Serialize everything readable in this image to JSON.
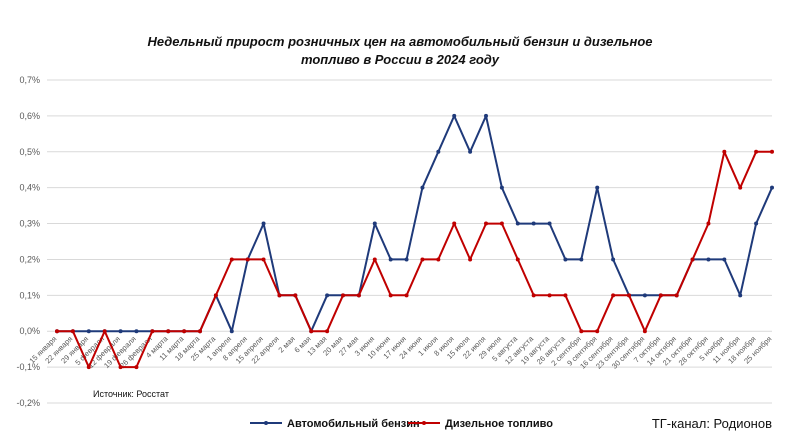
{
  "chart_data": {
    "type": "line",
    "title_line1": "Недельный прирост розничных цен на автомобильный бензин и дизельное",
    "title_line2": "топливо в России в 2024 году",
    "ylim": [
      -0.2,
      0.7
    ],
    "yticks": [
      "-0,2%",
      "-0,1%",
      "0,0%",
      "0,1%",
      "0,2%",
      "0,3%",
      "0,4%",
      "0,5%",
      "0,6%",
      "0,7%"
    ],
    "categories": [
      "15 января",
      "22 января",
      "29 января",
      "5 февраля",
      "12 февраля",
      "19 февраля",
      "26 февраля",
      "4 марта",
      "11 марта",
      "18 марта",
      "25 марта",
      "1 апреля",
      "8 апреля",
      "15 апреля",
      "22 апреля",
      "2 мая",
      "6 мая",
      "13 мая",
      "20 мая",
      "27 мая",
      "3 июня",
      "10 июня",
      "17 июня",
      "24 июня",
      "1 июля",
      "8 июля",
      "15 июля",
      "22 июля",
      "29 июля",
      "5 августа",
      "12 августа",
      "19 августа",
      "26 августа",
      "2 сентября",
      "9 сентября",
      "16 сентября",
      "23 сентября",
      "30 сентября",
      "7 октября",
      "14 октября",
      "21 октября",
      "28 октября",
      "5 ноября",
      "11 ноября",
      "18 ноября",
      "25 ноября"
    ],
    "series": [
      {
        "name": "Автомобильный бензин",
        "color": "#1f3a7a",
        "values": [
          0,
          0,
          0,
          0,
          0,
          0,
          0,
          0,
          0,
          0,
          0.1,
          0,
          0.2,
          0.3,
          0.1,
          0.1,
          0,
          0.1,
          0.1,
          0.1,
          0.3,
          0.2,
          0.2,
          0.4,
          0.5,
          0.6,
          0.5,
          0.6,
          0.4,
          0.3,
          0.3,
          0.3,
          0.2,
          0.2,
          0.4,
          0.2,
          0.1,
          0.1,
          0.1,
          0.1,
          0.2,
          0.2,
          0.2,
          0.1,
          0.3,
          0.4
        ]
      },
      {
        "name": "Дизельное топливо",
        "color": "#c00000",
        "values": [
          0,
          0,
          -0.1,
          0,
          -0.1,
          -0.1,
          0,
          0,
          0,
          0,
          0.1,
          0.2,
          0.2,
          0.2,
          0.1,
          0.1,
          0,
          0,
          0.1,
          0.1,
          0.2,
          0.1,
          0.1,
          0.2,
          0.2,
          0.3,
          0.2,
          0.3,
          0.3,
          0.2,
          0.1,
          0.1,
          0.1,
          0,
          0,
          0.1,
          0.1,
          0,
          0.1,
          0.1,
          0.2,
          0.3,
          0.5,
          0.4,
          0.5,
          0.5
        ]
      }
    ],
    "grid": true,
    "legend_position": "bottom"
  },
  "source_text": "Источник: Росстат",
  "channel_text": "ТГ-канал: Родионов"
}
